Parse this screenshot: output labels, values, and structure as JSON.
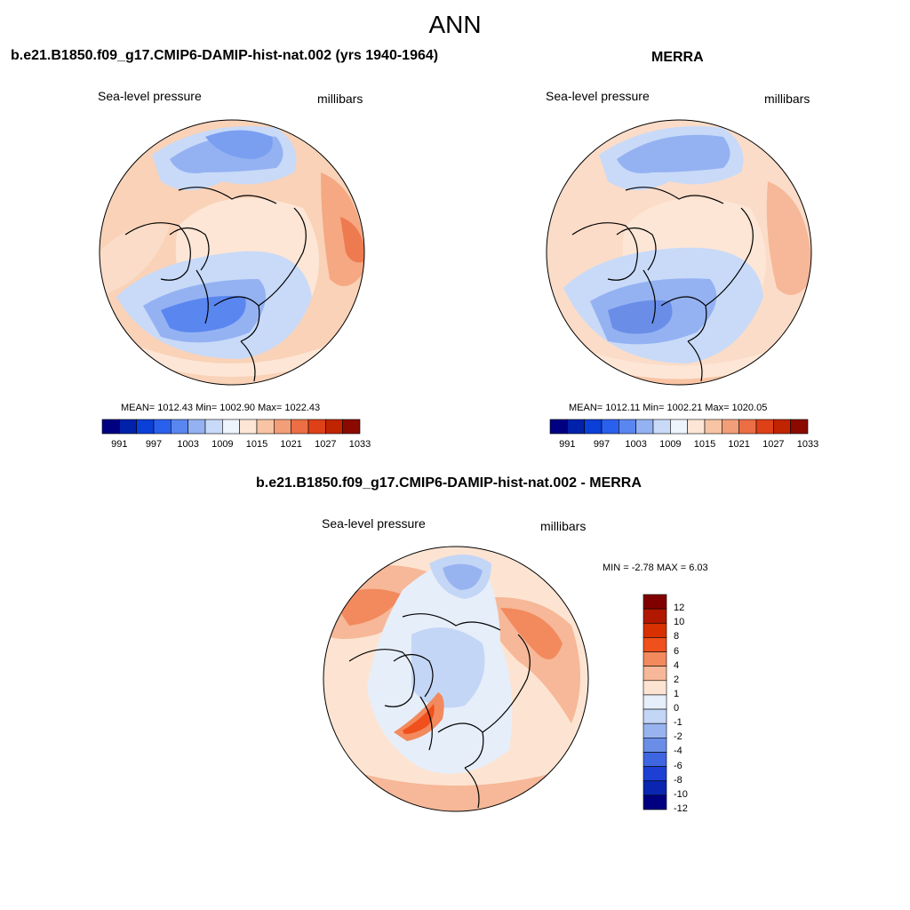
{
  "title": "ANN",
  "panels": [
    {
      "id": "left",
      "title": "b.e21.B1850.f09_g17.CMIP6-DAMIP-hist-nat.002 (yrs 1940-1964)",
      "variable": "Sea-level pressure",
      "units": "millibars",
      "stats": "MEAN= 1012.43  Min= 1002.90  Max= 1022.43",
      "colorbar_labels": [
        "991",
        "997",
        "1003",
        "1009",
        "1015",
        "1021",
        "1027",
        "1033"
      ]
    },
    {
      "id": "right",
      "title": "MERRA",
      "variable": "Sea-level pressure",
      "units": "millibars",
      "stats": "MEAN= 1012.11  Min= 1002.21  Max= 1020.05",
      "colorbar_labels": [
        "991",
        "997",
        "1003",
        "1009",
        "1015",
        "1021",
        "1027",
        "1033"
      ]
    },
    {
      "id": "diff",
      "title": "b.e21.B1850.f09_g17.CMIP6-DAMIP-hist-nat.002 - MERRA",
      "variable": "Sea-level pressure",
      "units": "millibars",
      "stats": "MIN =  -2.78 MAX =   6.03",
      "colorbar_labels": [
        "12",
        "10",
        "8",
        "6",
        "4",
        "2",
        "1",
        "0",
        "-1",
        "-2",
        "-4",
        "-6",
        "-8",
        "-10",
        "-12"
      ]
    }
  ],
  "palettes": {
    "full": [
      "#000080",
      "#0022aa",
      "#0a40d8",
      "#2a60ee",
      "#5a86f0",
      "#94b2f2",
      "#c8daf8",
      "#eef4fc",
      "#fde6d6",
      "#f8c4a4",
      "#f29e78",
      "#ec6e44",
      "#de4018",
      "#c02400",
      "#8a0a00"
    ],
    "diff": [
      "#800000",
      "#b21800",
      "#d83000",
      "#f0501c",
      "#f28a5e",
      "#f6b898",
      "#fde4d2",
      "#e6eefa",
      "#c4d6f6",
      "#98b4f0",
      "#6a8ee8",
      "#3e66e0",
      "#1c40d4",
      "#0a26b0",
      "#000080"
    ]
  }
}
